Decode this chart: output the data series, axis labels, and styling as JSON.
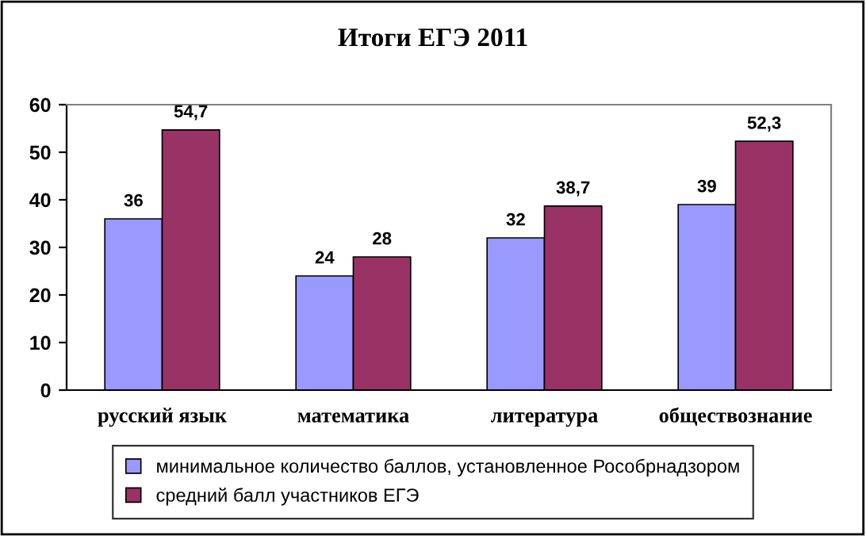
{
  "chart_data": {
    "type": "bar",
    "title": "Итоги ЕГЭ 2011",
    "categories": [
      "русский язык",
      "математика",
      "литература",
      "обществознание"
    ],
    "series": [
      {
        "name": "минимальное количество баллов, установленное Рособрнадзором",
        "color": "#9999ff",
        "values": [
          36,
          24,
          32,
          39
        ],
        "value_labels": [
          "36",
          "24",
          "32",
          "39"
        ]
      },
      {
        "name": "средний балл участников ЕГЭ",
        "color": "#993366",
        "values": [
          54.7,
          28,
          38.7,
          52.3
        ],
        "value_labels": [
          "54,7",
          "28",
          "38,7",
          "52,3"
        ]
      }
    ],
    "ylim": [
      0,
      60
    ],
    "yticks": [
      0,
      10,
      20,
      30,
      40,
      50,
      60
    ],
    "grid": false,
    "legend": "bottom"
  }
}
